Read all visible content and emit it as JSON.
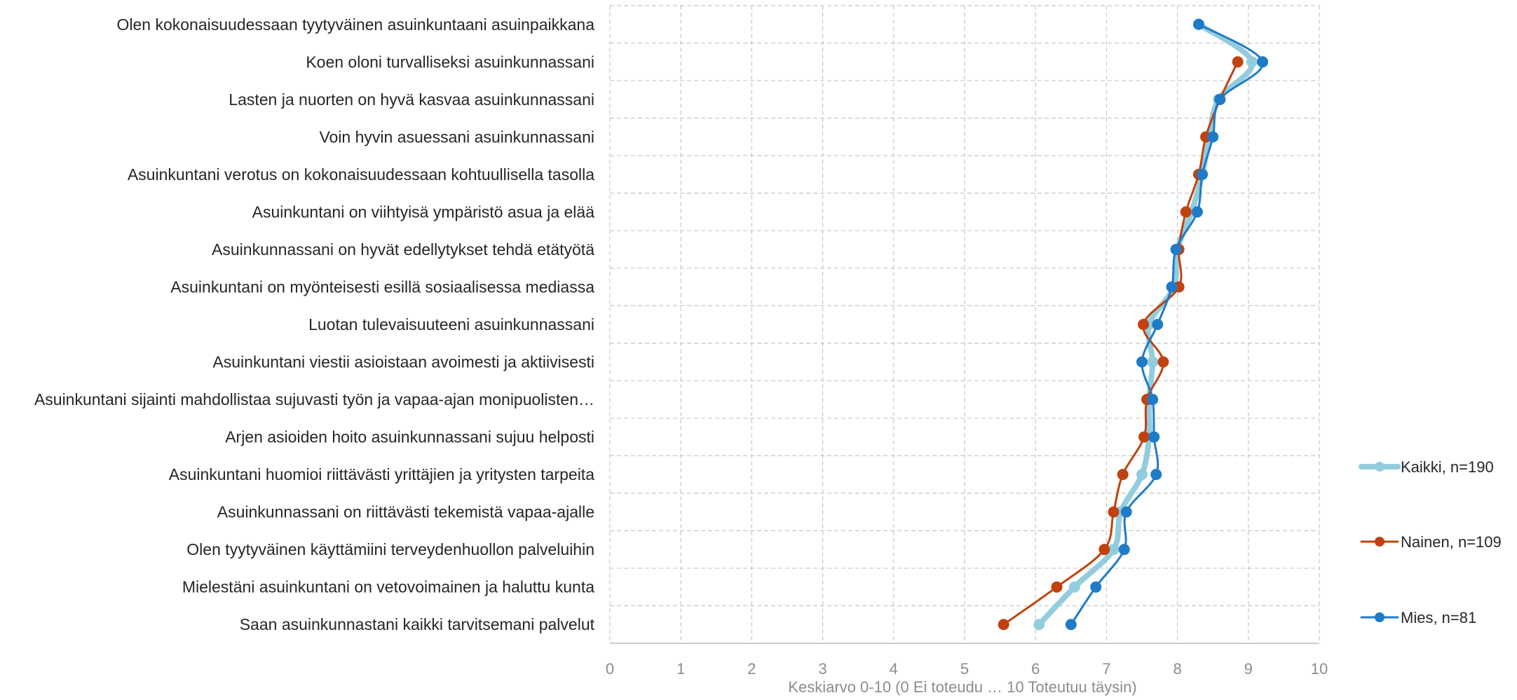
{
  "chart_data": {
    "type": "line",
    "orientation": "horizontal",
    "xlabel": "Keskiarvo 0-10 (0 Ei toteudu … 10 Toteutuu täysin)",
    "xlim": [
      0,
      10
    ],
    "xticks": [
      0,
      1,
      2,
      3,
      4,
      5,
      6,
      7,
      8,
      9,
      10
    ],
    "grid": true,
    "legend_position": "right",
    "categories": [
      "Olen kokonaisuudessaan tyytyväinen asuinkuntaani asuinpaikkana",
      "Koen oloni turvalliseksi asuinkunnassani",
      "Lasten ja nuorten on hyvä kasvaa asuinkunnassani",
      "Voin hyvin asuessani asuinkunnassani",
      "Asuinkuntani verotus on kokonaisuudessaan kohtuullisella tasolla",
      "Asuinkuntani on viihtyisä ympäristö asua ja elää",
      "Asuinkunnassani on hyvät edellytykset tehdä etätyötä",
      "Asuinkuntani on myönteisesti esillä sosiaalisessa mediassa",
      "Luotan tulevaisuuteeni asuinkunnassani",
      "Asuinkuntani viestii asioistaan avoimesti ja aktiivisesti",
      "Asuinkuntani sijainti mahdollistaa sujuvasti työn ja vapaa-ajan monipuolisten…",
      "Arjen asioiden hoito asuinkunnassani sujuu helposti",
      "Asuinkuntani huomioi riittävästi yrittäjien ja yritysten tarpeita",
      "Asuinkunnassani on riittävästi tekemistä vapaa-ajalle",
      "Olen tyytyväinen käyttämiini terveydenhuollon palveluihin",
      "Mielestäni asuinkuntani on vetovoimainen ja haluttu kunta",
      "Saan asuinkunnastani kaikki tarvitsemani palvelut"
    ],
    "series": [
      {
        "name": "Kaikki, n=190",
        "color": "#93cddd",
        "values": [
          8.3,
          9.05,
          8.58,
          8.45,
          8.35,
          8.2,
          8.0,
          7.95,
          7.6,
          7.65,
          7.6,
          7.6,
          7.5,
          7.2,
          7.1,
          6.55,
          6.05
        ]
      },
      {
        "name": "Nainen, n=109",
        "color": "#c0430f",
        "values": [
          null,
          8.85,
          8.6,
          8.4,
          8.3,
          8.12,
          8.02,
          8.02,
          7.52,
          7.8,
          7.57,
          7.53,
          7.23,
          7.1,
          6.97,
          6.3,
          5.55
        ]
      },
      {
        "name": "Mies, n=81",
        "color": "#1f7bc8",
        "values": [
          8.3,
          9.2,
          8.6,
          8.5,
          8.35,
          8.28,
          7.98,
          7.92,
          7.72,
          7.5,
          7.65,
          7.67,
          7.7,
          7.28,
          7.25,
          6.85,
          6.5
        ]
      }
    ]
  }
}
